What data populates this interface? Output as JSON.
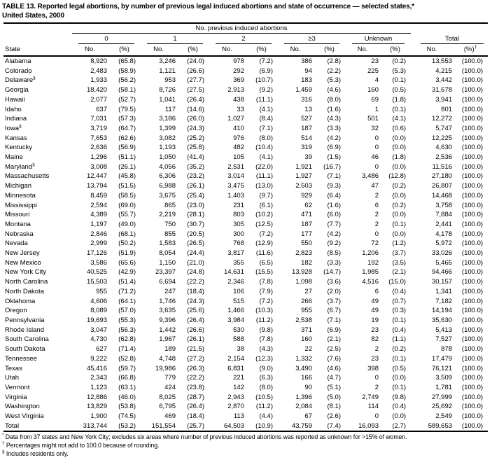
{
  "title": {
    "line1": "TABLE 13. Reported legal abortions, by number of previous legal induced abortions and state of occurrence — selected states,*",
    "line2": "United States, 2000"
  },
  "header": {
    "group_title": "No. previous induced abortions",
    "groups": [
      "0",
      "1",
      "2",
      "≥3",
      "Unknown"
    ],
    "total_label": "Total",
    "state_label": "State",
    "no_label": "No.",
    "pct_label": "(%)",
    "total_pct_sup": "†"
  },
  "rows": [
    {
      "state": "Alabama",
      "marker": "",
      "values": [
        "8,920",
        "(65.8)",
        "3,246",
        "(24.0)",
        "978",
        "(7.2)",
        "386",
        "(2.8)",
        "23",
        "(0.2)",
        "13,553",
        "(100.0)"
      ]
    },
    {
      "state": "Colorado",
      "marker": "",
      "values": [
        "2,483",
        "(58.9)",
        "1,121",
        "(26.6)",
        "292",
        "(6.9)",
        "94",
        "(2.2)",
        "225",
        "(5.3)",
        "4,215",
        "(100.0)"
      ]
    },
    {
      "state": "Delaware",
      "marker": "§",
      "values": [
        "1,933",
        "(56.2)",
        "953",
        "(27.7)",
        "369",
        "(10.7)",
        "183",
        "(5.3)",
        "4",
        "(0.1)",
        "3,442",
        "(100.0)"
      ]
    },
    {
      "state": "Georgia",
      "marker": "",
      "values": [
        "18,420",
        "(58.1)",
        "8,726",
        "(27.5)",
        "2,913",
        "(9.2)",
        "1,459",
        "(4.6)",
        "160",
        "(0.5)",
        "31,678",
        "(100.0)"
      ]
    },
    {
      "state": "Hawaii",
      "marker": "",
      "values": [
        "2,077",
        "(52.7)",
        "1,041",
        "(26.4)",
        "438",
        "(11.1)",
        "316",
        "(8.0)",
        "69",
        "(1.8)",
        "3,941",
        "(100.0)"
      ]
    },
    {
      "state": "Idaho",
      "marker": "",
      "values": [
        "637",
        "(79.5)",
        "117",
        "(14.6)",
        "33",
        "(4.1)",
        "13",
        "(1.6)",
        "1",
        "(0.1)",
        "801",
        "(100.0)"
      ]
    },
    {
      "state": "Indiana",
      "marker": "",
      "values": [
        "7,031",
        "(57.3)",
        "3,186",
        "(26.0)",
        "1,027",
        "(8.4)",
        "527",
        "(4.3)",
        "501",
        "(4.1)",
        "12,272",
        "(100.0)"
      ]
    },
    {
      "state": "Iowa",
      "marker": "§",
      "values": [
        "3,719",
        "(64.7)",
        "1,399",
        "(24.3)",
        "410",
        "(7.1)",
        "187",
        "(3.3)",
        "32",
        "(0.6)",
        "5,747",
        "(100.0)"
      ]
    },
    {
      "state": "Kansas",
      "marker": "",
      "values": [
        "7,653",
        "(62.6)",
        "3,082",
        "(25.2)",
        "976",
        "(8.0)",
        "514",
        "(4.2)",
        "0",
        "(0.0)",
        "12,225",
        "(100.0)"
      ]
    },
    {
      "state": "Kentucky",
      "marker": "",
      "values": [
        "2,636",
        "(56.9)",
        "1,193",
        "(25.8)",
        "482",
        "(10.4)",
        "319",
        "(6.9)",
        "0",
        "(0.0)",
        "4,630",
        "(100.0)"
      ]
    },
    {
      "state": "Maine",
      "marker": "",
      "values": [
        "1,296",
        "(51.1)",
        "1,050",
        "(41.4)",
        "105",
        "(4.1)",
        "39",
        "(1.5)",
        "46",
        "(1.8)",
        "2,536",
        "(100.0)"
      ]
    },
    {
      "state": "Maryland",
      "marker": "§",
      "values": [
        "3,008",
        "(26.1)",
        "4,056",
        "(35.2)",
        "2,531",
        "(22.0)",
        "1,921",
        "(16.7)",
        "0",
        "(0.0)",
        "11,516",
        "(100.0)"
      ]
    },
    {
      "state": "Massachusetts",
      "marker": "",
      "values": [
        "12,447",
        "(45.8)",
        "6,306",
        "(23.2)",
        "3,014",
        "(11.1)",
        "1,927",
        "(7.1)",
        "3,486",
        "(12.8)",
        "27,180",
        "(100.0)"
      ]
    },
    {
      "state": "Michigan",
      "marker": "",
      "values": [
        "13,794",
        "(51.5)",
        "6,988",
        "(26.1)",
        "3,475",
        "(13.0)",
        "2,503",
        "(9.3)",
        "47",
        "(0.2)",
        "26,807",
        "(100.0)"
      ]
    },
    {
      "state": "Minnesota",
      "marker": "",
      "values": [
        "8,459",
        "(58.5)",
        "3,675",
        "(25.4)",
        "1,403",
        "(9.7)",
        "929",
        "(6.4)",
        "2",
        "(0.0)",
        "14,468",
        "(100.0)"
      ]
    },
    {
      "state": "Mississippi",
      "marker": "",
      "values": [
        "2,594",
        "(69.0)",
        "865",
        "(23.0)",
        "231",
        "(6.1)",
        "62",
        "(1.6)",
        "6",
        "(0.2)",
        "3,758",
        "(100.0)"
      ]
    },
    {
      "state": "Missouri",
      "marker": "",
      "values": [
        "4,389",
        "(55.7)",
        "2,219",
        "(28.1)",
        "803",
        "(10.2)",
        "471",
        "(6.0)",
        "2",
        "(0.0)",
        "7,884",
        "(100.0)"
      ]
    },
    {
      "state": "Montana",
      "marker": "",
      "values": [
        "1,197",
        "(49.0)",
        "750",
        "(30.7)",
        "305",
        "(12.5)",
        "187",
        "(7.7)",
        "2",
        "(0.1)",
        "2,441",
        "(100.0)"
      ]
    },
    {
      "state": "Nebraska",
      "marker": "",
      "values": [
        "2,846",
        "(68.1)",
        "855",
        "(20.5)",
        "300",
        "(7.2)",
        "177",
        "(4.2)",
        "0",
        "(0.0)",
        "4,178",
        "(100.0)"
      ]
    },
    {
      "state": "Nevada",
      "marker": "",
      "values": [
        "2,999",
        "(50.2)",
        "1,583",
        "(26.5)",
        "768",
        "(12.9)",
        "550",
        "(9.2)",
        "72",
        "(1.2)",
        "5,972",
        "(100.0)"
      ]
    },
    {
      "state": "New Jersey",
      "marker": "",
      "values": [
        "17,126",
        "(51.9)",
        "8,054",
        "(24.4)",
        "3,817",
        "(11.6)",
        "2,823",
        "(8.5)",
        "1,206",
        "(3.7)",
        "33,026",
        "(100.0)"
      ]
    },
    {
      "state": "New Mexico",
      "marker": "",
      "values": [
        "3,586",
        "(65.6)",
        "1,150",
        "(21.0)",
        "355",
        "(6.5)",
        "182",
        "(3.3)",
        "192",
        "(3.5)",
        "5,465",
        "(100.0)"
      ]
    },
    {
      "state": "New York City",
      "marker": "",
      "values": [
        "40,525",
        "(42.9)",
        "23,397",
        "(24.8)",
        "14,631",
        "(15.5)",
        "13,928",
        "(14.7)",
        "1,985",
        "(2.1)",
        "94,466",
        "(100.0)"
      ]
    },
    {
      "state": "North Carolina",
      "marker": "",
      "values": [
        "15,503",
        "(51.4)",
        "6,694",
        "(22.2)",
        "2,346",
        "(7.8)",
        "1,098",
        "(3.6)",
        "4,516",
        "(15.0)",
        "30,157",
        "(100.0)"
      ]
    },
    {
      "state": "North Dakota",
      "marker": "",
      "values": [
        "955",
        "(71.2)",
        "247",
        "(18.4)",
        "106",
        "(7.9)",
        "27",
        "(2.0)",
        "6",
        "(0.4)",
        "1,341",
        "(100.0)"
      ]
    },
    {
      "state": "Oklahoma",
      "marker": "",
      "values": [
        "4,606",
        "(64.1)",
        "1,746",
        "(24.3)",
        "515",
        "(7.2)",
        "266",
        "(3.7)",
        "49",
        "(0.7)",
        "7,182",
        "(100.0)"
      ]
    },
    {
      "state": "Oregon",
      "marker": "",
      "values": [
        "8,089",
        "(57.0)",
        "3,635",
        "(25.6)",
        "1,466",
        "(10.3)",
        "955",
        "(6.7)",
        "49",
        "(0.3)",
        "14,194",
        "(100.0)"
      ]
    },
    {
      "state": "Pennsylvania",
      "marker": "",
      "values": [
        "19,693",
        "(55.3)",
        "9,396",
        "(26.4)",
        "3,984",
        "(11.2)",
        "2,538",
        "(7.1)",
        "19",
        "(0.1)",
        "35,630",
        "(100.0)"
      ]
    },
    {
      "state": "Rhode Island",
      "marker": "",
      "values": [
        "3,047",
        "(56.3)",
        "1,442",
        "(26.6)",
        "530",
        "(9.8)",
        "371",
        "(6.9)",
        "23",
        "(0.4)",
        "5,413",
        "(100.0)"
      ]
    },
    {
      "state": "South Carolina",
      "marker": "",
      "values": [
        "4,730",
        "(62.8)",
        "1,967",
        "(26.1)",
        "588",
        "(7.8)",
        "160",
        "(2.1)",
        "82",
        "(1.1)",
        "7,527",
        "(100.0)"
      ]
    },
    {
      "state": "South Dakota",
      "marker": "",
      "values": [
        "627",
        "(71.4)",
        "189",
        "(21.5)",
        "38",
        "(4.3)",
        "22",
        "(2.5)",
        "2",
        "(0.2)",
        "878",
        "(100.0)"
      ]
    },
    {
      "state": "Tennessee",
      "marker": "",
      "values": [
        "9,222",
        "(52.8)",
        "4,748",
        "(27.2)",
        "2,154",
        "(12.3)",
        "1,332",
        "(7.6)",
        "23",
        "(0.1)",
        "17,479",
        "(100.0)"
      ]
    },
    {
      "state": "Texas",
      "marker": "",
      "values": [
        "45,416",
        "(59.7)",
        "19,986",
        "(26.3)",
        "6,831",
        "(9.0)",
        "3,490",
        "(4.6)",
        "398",
        "(0.5)",
        "76,121",
        "(100.0)"
      ]
    },
    {
      "state": "Utah",
      "marker": "",
      "values": [
        "2,343",
        "(66.8)",
        "779",
        "(22.2)",
        "221",
        "(6.3)",
        "166",
        "(4.7)",
        "0",
        "(0.0)",
        "3,509",
        "(100.0)"
      ]
    },
    {
      "state": "Vermont",
      "marker": "",
      "values": [
        "1,123",
        "(63.1)",
        "424",
        "(23.8)",
        "142",
        "(8.0)",
        "90",
        "(5.1)",
        "2",
        "(0.1)",
        "1,781",
        "(100.0)"
      ]
    },
    {
      "state": "Virginia",
      "marker": "",
      "values": [
        "12,886",
        "(46.0)",
        "8,025",
        "(28.7)",
        "2,943",
        "(10.5)",
        "1,396",
        "(5.0)",
        "2,749",
        "(9.8)",
        "27,999",
        "(100.0)"
      ]
    },
    {
      "state": "Washington",
      "marker": "",
      "values": [
        "13,829",
        "(53.8)",
        "6,795",
        "(26.4)",
        "2,870",
        "(11.2)",
        "2,084",
        "(8.1)",
        "114",
        "(0.4)",
        "25,692",
        "(100.0)"
      ]
    },
    {
      "state": "West Virginia",
      "marker": "",
      "values": [
        "1,900",
        "(74.5)",
        "469",
        "(18.4)",
        "113",
        "(4.4)",
        "67",
        "(2.6)",
        "0",
        "(0.0)",
        "2,549",
        "(100.0)"
      ]
    }
  ],
  "total_row": {
    "state": "Total",
    "marker": "",
    "values": [
      "313,744",
      "(53.2)",
      "151,554",
      "(25.7)",
      "64,503",
      "(10.9)",
      "43,759",
      "(7.4)",
      "16,093",
      "(2.7)",
      "589,653",
      "(100.0)"
    ]
  },
  "footnotes": [
    {
      "marker": "*",
      "text": "Data from 37 states and New York City; excludes six areas where number of previous induced abortions was reported as unknown for >15% of women."
    },
    {
      "marker": "†",
      "text": "Percentages might not add to 100.0 because of rounding."
    },
    {
      "marker": "§",
      "text": "Includes residents only."
    }
  ]
}
